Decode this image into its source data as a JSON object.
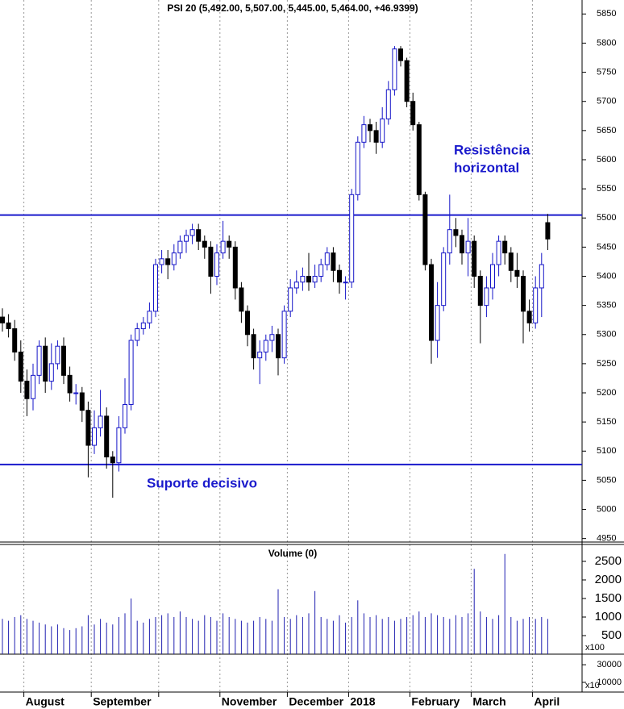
{
  "chart_data": {
    "type": "candlestick",
    "title": "PSI 20 (5,492.00, 5,507.00, 5,445.00, 5,464.00, +46.9399)",
    "annotations": [
      "Resistência",
      "horizontal",
      "Suporte decisivo"
    ],
    "up_color": "#1515c8",
    "down_color": "#000000",
    "line_color": "#1a1acc",
    "hlines": [
      5505,
      5077
    ],
    "ylim": [
      4944,
      5874
    ],
    "yticks": [
      4950,
      5000,
      5050,
      5100,
      5150,
      5200,
      5250,
      5300,
      5350,
      5400,
      5450,
      5500,
      5550,
      5600,
      5650,
      5700,
      5750,
      5800,
      5850
    ],
    "xticks": [
      {
        "value": 4,
        "label": "August"
      },
      {
        "value": 15,
        "label": "September"
      },
      {
        "value": 26,
        "label": null
      },
      {
        "value": 36,
        "label": "November"
      },
      {
        "value": 47,
        "label": "December"
      },
      {
        "value": 57,
        "label": "2018"
      },
      {
        "value": 67,
        "label": "February"
      },
      {
        "value": 77,
        "label": "March"
      },
      {
        "value": 87,
        "label": "April"
      }
    ],
    "open": [
      5330,
      5320,
      5310,
      5270,
      5220,
      5190,
      5230,
      5280,
      5220,
      5250,
      5280,
      5230,
      5200,
      5200,
      5170,
      5110,
      5140,
      5160,
      5090,
      5080,
      5140,
      5180,
      5290,
      5310,
      5320,
      5340,
      5420,
      5430,
      5420,
      5440,
      5460,
      5470,
      5480,
      5460,
      5450,
      5400,
      5440,
      5460,
      5450,
      5380,
      5340,
      5300,
      5260,
      5270,
      5290,
      5300,
      5260,
      5340,
      5380,
      5390,
      5400,
      5390,
      5400,
      5420,
      5440,
      5410,
      5390,
      5390,
      5540,
      5630,
      5660,
      5650,
      5630,
      5670,
      5720,
      5790,
      5770,
      5700,
      5660,
      5540,
      5420,
      5290,
      5350,
      5440,
      5480,
      5470,
      5440,
      5460,
      5400,
      5350,
      5380,
      5420,
      5460,
      5440,
      5410,
      5400,
      5340,
      5320,
      5380,
      5492
    ],
    "high": [
      5345,
      5335,
      5325,
      5290,
      5240,
      5250,
      5290,
      5295,
      5285,
      5290,
      5295,
      5245,
      5215,
      5210,
      5185,
      5170,
      5205,
      5175,
      5100,
      5160,
      5225,
      5300,
      5320,
      5330,
      5355,
      5430,
      5445,
      5445,
      5455,
      5470,
      5480,
      5490,
      5490,
      5470,
      5460,
      5455,
      5495,
      5470,
      5460,
      5390,
      5350,
      5310,
      5290,
      5300,
      5315,
      5310,
      5350,
      5395,
      5410,
      5415,
      5440,
      5420,
      5430,
      5450,
      5450,
      5420,
      5400,
      5550,
      5640,
      5675,
      5670,
      5665,
      5690,
      5735,
      5795,
      5795,
      5775,
      5715,
      5665,
      5545,
      5430,
      5390,
      5450,
      5540,
      5500,
      5480,
      5500,
      5470,
      5410,
      5400,
      5440,
      5470,
      5470,
      5450,
      5440,
      5410,
      5360,
      5400,
      5440,
      5507
    ],
    "low": [
      5305,
      5295,
      5255,
      5200,
      5160,
      5170,
      5215,
      5200,
      5205,
      5240,
      5215,
      5185,
      5180,
      5150,
      5055,
      5095,
      5125,
      5070,
      5020,
      5065,
      5130,
      5170,
      5280,
      5300,
      5310,
      5330,
      5405,
      5395,
      5410,
      5430,
      5440,
      5455,
      5445,
      5430,
      5370,
      5385,
      5430,
      5430,
      5360,
      5320,
      5280,
      5240,
      5215,
      5255,
      5270,
      5230,
      5250,
      5330,
      5370,
      5375,
      5375,
      5380,
      5390,
      5410,
      5390,
      5370,
      5360,
      5380,
      5530,
      5620,
      5630,
      5610,
      5620,
      5660,
      5710,
      5760,
      5690,
      5650,
      5530,
      5410,
      5250,
      5260,
      5340,
      5420,
      5450,
      5420,
      5400,
      5380,
      5285,
      5330,
      5360,
      5400,
      5420,
      5390,
      5380,
      5285,
      5305,
      5310,
      5330,
      5445
    ],
    "close": [
      5320,
      5310,
      5270,
      5220,
      5190,
      5230,
      5280,
      5220,
      5250,
      5280,
      5230,
      5200,
      5200,
      5170,
      5110,
      5140,
      5160,
      5090,
      5080,
      5140,
      5180,
      5290,
      5310,
      5320,
      5340,
      5420,
      5430,
      5420,
      5440,
      5460,
      5470,
      5480,
      5460,
      5450,
      5400,
      5440,
      5460,
      5450,
      5380,
      5340,
      5300,
      5260,
      5270,
      5290,
      5300,
      5260,
      5340,
      5380,
      5390,
      5400,
      5390,
      5400,
      5420,
      5440,
      5410,
      5390,
      5390,
      5540,
      5630,
      5660,
      5650,
      5630,
      5670,
      5720,
      5790,
      5770,
      5700,
      5660,
      5540,
      5420,
      5290,
      5350,
      5440,
      5480,
      5470,
      5440,
      5460,
      5400,
      5350,
      5380,
      5420,
      5460,
      5440,
      5410,
      5400,
      5340,
      5320,
      5380,
      5420,
      5464
    ],
    "volume": {
      "title": "Volume (0)",
      "unit": "x100",
      "color": "#2020b0",
      "ylim": [
        0,
        2956
      ],
      "yticks": [
        500,
        1000,
        1500,
        2000,
        2500
      ],
      "values": [
        950,
        900,
        1000,
        1050,
        950,
        900,
        850,
        800,
        750,
        800,
        700,
        650,
        700,
        750,
        1050,
        800,
        950,
        850,
        800,
        1000,
        1100,
        1500,
        900,
        850,
        950,
        1000,
        1050,
        1100,
        1000,
        1150,
        1000,
        950,
        900,
        1050,
        1000,
        900,
        1100,
        1000,
        950,
        900,
        850,
        900,
        1000,
        950,
        900,
        1750,
        1000,
        950,
        1050,
        1000,
        1100,
        1700,
        1000,
        950,
        900,
        1050,
        850,
        1000,
        1450,
        1100,
        1000,
        1050,
        950,
        1000,
        900,
        950,
        1000,
        1050,
        1150,
        1000,
        1100,
        1050,
        1000,
        950,
        1050,
        1000,
        1100,
        2300,
        1150,
        1000,
        950,
        1050,
        2700,
        1000,
        900,
        950,
        1000,
        950,
        1000,
        950
      ]
    },
    "panel3": {
      "unit": "x10",
      "ylim": [
        -1000,
        42000
      ],
      "yticks": [
        10000,
        30000
      ]
    }
  }
}
